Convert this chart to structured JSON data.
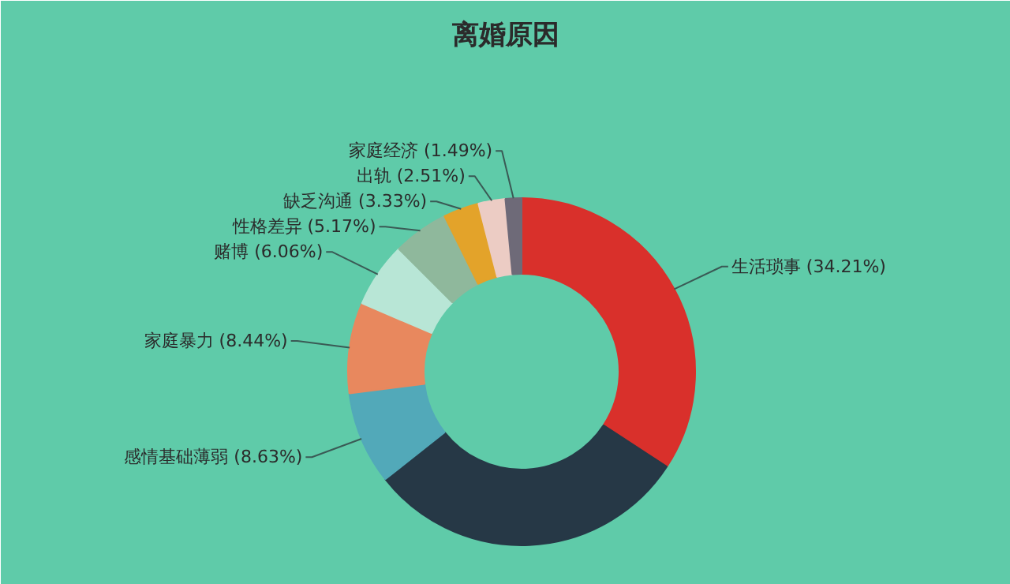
{
  "chart_data": {
    "type": "donut",
    "title": "离婚原因",
    "categories": [
      "生活琐事",
      null,
      "感情基础薄弱",
      "家庭暴力",
      "赌博",
      "性格差异",
      "缺乏沟通",
      "出轨",
      "家庭经济"
    ],
    "values": [
      34.21,
      30.16,
      8.63,
      8.44,
      6.06,
      5.17,
      3.33,
      2.51,
      1.49
    ],
    "value_labels": [
      "(34.21%)",
      null,
      "(8.63%)",
      "(8.44%)",
      "(6.06%)",
      "(5.17%)",
      "(3.33%)",
      "(2.51%)",
      "(1.49%)"
    ],
    "colors": [
      "#d9302b",
      "#263846",
      "#52a9b9",
      "#e8885e",
      "#b8e6d6",
      "#8fb89c",
      "#e3a32a",
      "#ecccc4",
      "#6e6a78"
    ],
    "legend": false
  }
}
